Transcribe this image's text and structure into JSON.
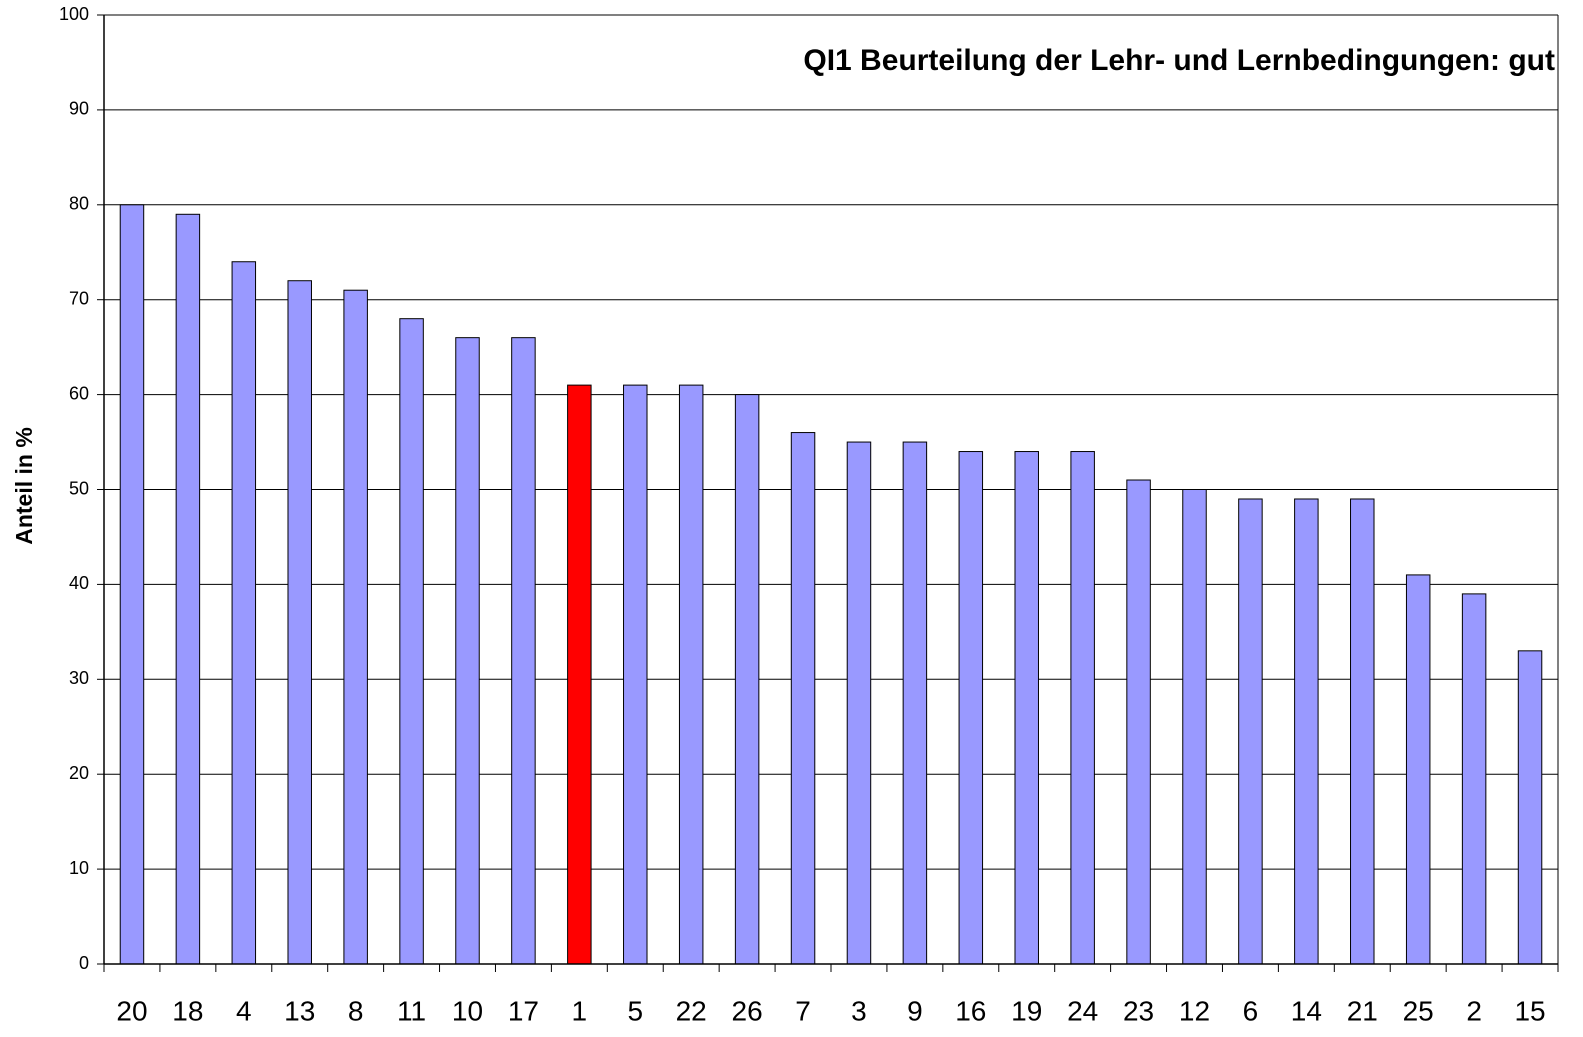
{
  "chart_data": {
    "type": "bar",
    "title": "QI1 Beurteilung der Lehr- und Lernbedingungen: gut",
    "y_label": "Anteil in %",
    "categories": [
      "20",
      "18",
      "4",
      "13",
      "8",
      "11",
      "10",
      "17",
      "1",
      "5",
      "22",
      "26",
      "7",
      "3",
      "9",
      "16",
      "19",
      "24",
      "23",
      "12",
      "6",
      "14",
      "21",
      "25",
      "2",
      "15"
    ],
    "values": [
      80,
      79,
      74,
      72,
      71,
      68,
      66,
      66,
      61,
      61,
      61,
      60,
      56,
      55,
      55,
      54,
      54,
      54,
      51,
      50,
      49,
      49,
      49,
      41,
      39,
      33
    ],
    "colors": [
      "#9999ff",
      "#9999ff",
      "#9999ff",
      "#9999ff",
      "#9999ff",
      "#9999ff",
      "#9999ff",
      "#9999ff",
      "#ff0000",
      "#9999ff",
      "#9999ff",
      "#9999ff",
      "#9999ff",
      "#9999ff",
      "#9999ff",
      "#9999ff",
      "#9999ff",
      "#9999ff",
      "#9999ff",
      "#9999ff",
      "#9999ff",
      "#9999ff",
      "#9999ff",
      "#9999ff",
      "#9999ff",
      "#9999ff"
    ],
    "ylim": [
      0,
      100
    ],
    "yticks": [
      0,
      10,
      20,
      30,
      40,
      50,
      60,
      70,
      80,
      90,
      100
    ],
    "grid": true
  }
}
